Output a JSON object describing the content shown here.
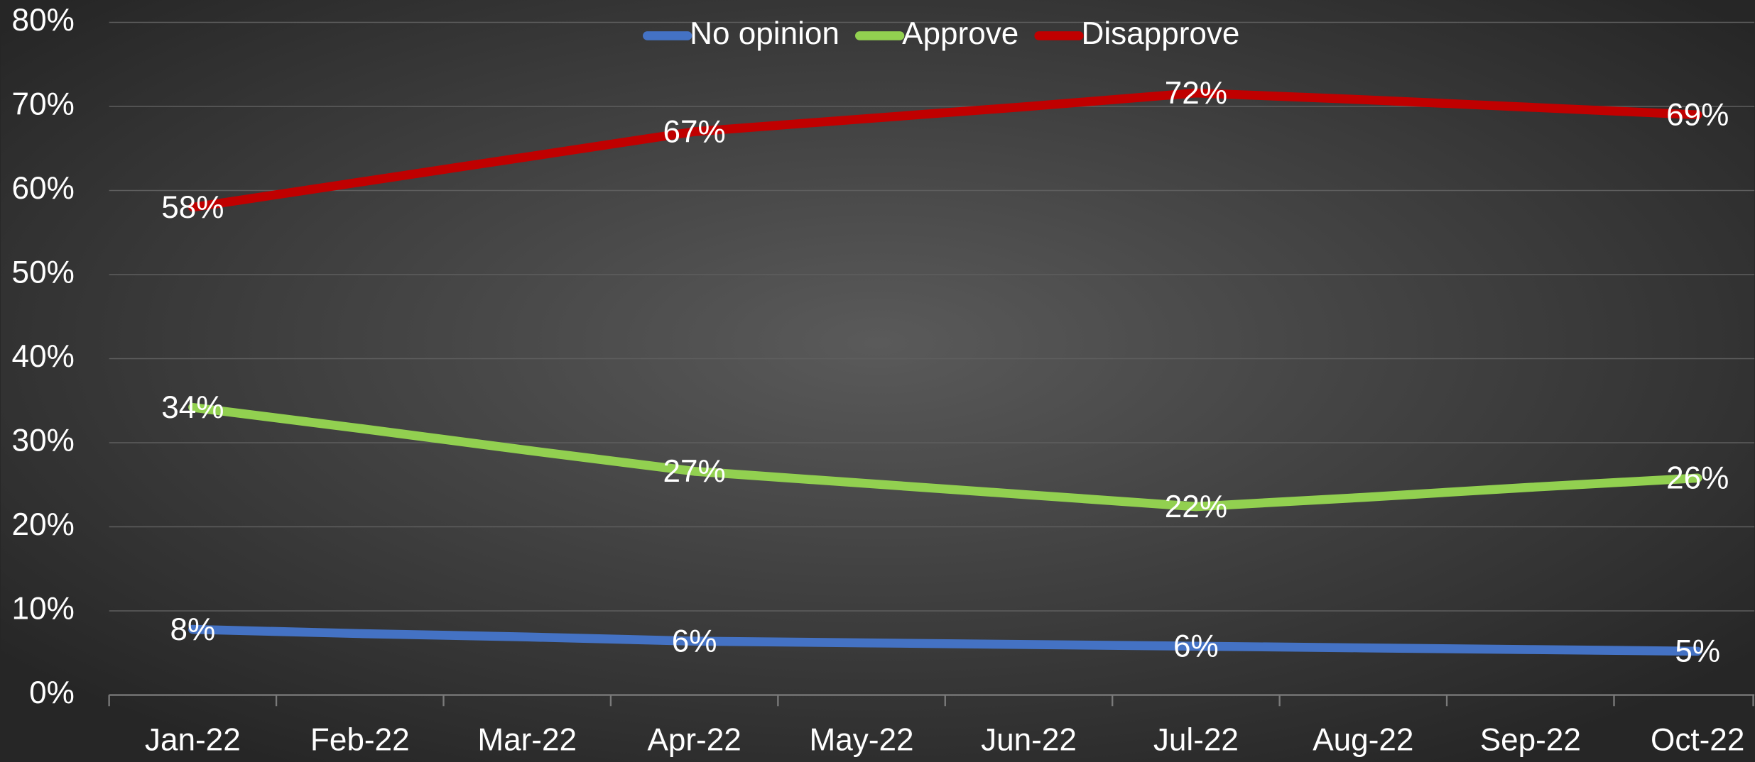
{
  "chart_data": {
    "type": "line",
    "categories": [
      "Jan-22",
      "Feb-22",
      "Mar-22",
      "Apr-22",
      "May-22",
      "Jun-22",
      "Jul-22",
      "Aug-22",
      "Sep-22",
      "Oct-22"
    ],
    "series": [
      {
        "name": "No opinion",
        "color": "#4472c4",
        "values": [
          7.8,
          7.3,
          6.9,
          6.4,
          6.2,
          6.0,
          5.8,
          5.6,
          5.4,
          5.2
        ],
        "value_labels": [
          "8%",
          null,
          null,
          "6%",
          null,
          null,
          "6%",
          null,
          null,
          "5%"
        ]
      },
      {
        "name": "Approve",
        "color": "#92d050",
        "values": [
          34.2,
          31.7,
          29.1,
          26.6,
          25.2,
          23.8,
          22.4,
          23.5,
          24.7,
          25.8
        ],
        "value_labels": [
          "34%",
          null,
          null,
          "27%",
          null,
          null,
          "22%",
          null,
          null,
          "26%"
        ]
      },
      {
        "name": "Disapprove",
        "color": "#c00000",
        "values": [
          58,
          61,
          64,
          67,
          68.5,
          70,
          71.6,
          70.8,
          69.9,
          69
        ],
        "value_labels": [
          "58%",
          null,
          null,
          "67%",
          null,
          null,
          "72%",
          null,
          null,
          "69%"
        ]
      }
    ],
    "ylim": [
      0,
      80
    ],
    "yticks": [
      {
        "value": 0,
        "label": "0%"
      },
      {
        "value": 10,
        "label": "10%"
      },
      {
        "value": 20,
        "label": "20%"
      },
      {
        "value": 30,
        "label": "30%"
      },
      {
        "value": 40,
        "label": "40%"
      },
      {
        "value": 50,
        "label": "50%"
      },
      {
        "value": 60,
        "label": "60%"
      },
      {
        "value": 70,
        "label": "70%"
      },
      {
        "value": 80,
        "label": "80%"
      }
    ],
    "grid": true,
    "legend": "top"
  }
}
